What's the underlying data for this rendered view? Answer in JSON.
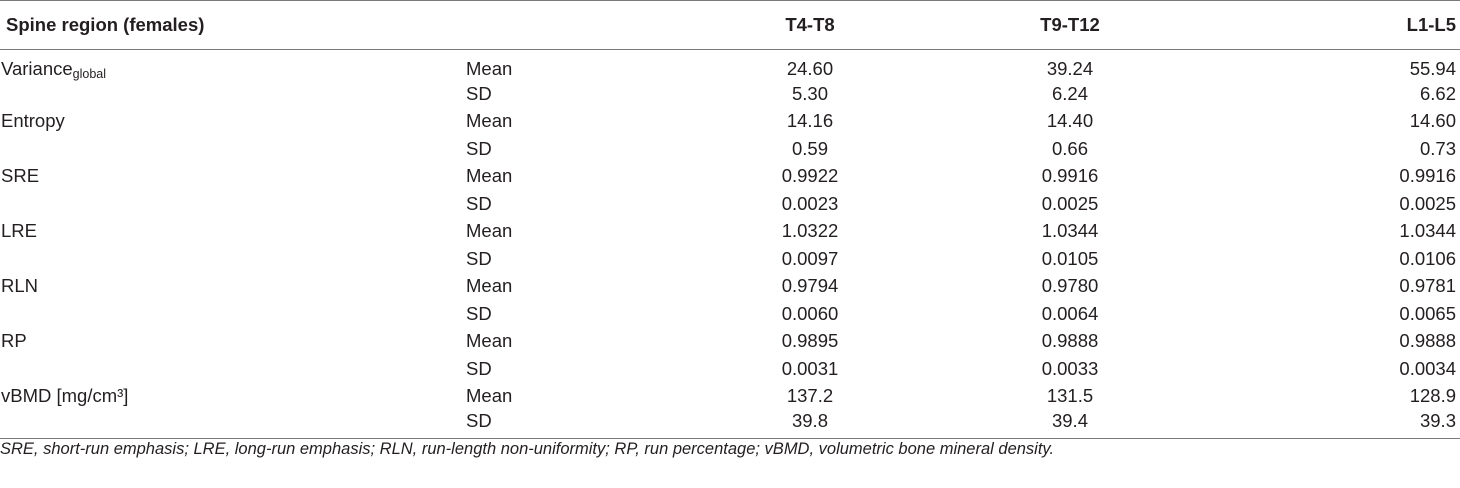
{
  "header": {
    "region": "Spine region (females)",
    "stat": "",
    "col1": "T4-T8",
    "col2": "T9-T12",
    "col3": "L1-L5"
  },
  "rows": [
    {
      "label": "Variance",
      "label_sub": "global",
      "stat": "Mean",
      "v1": "24.60",
      "v2": "39.24",
      "v3": "55.94"
    },
    {
      "label": "",
      "label_sub": "",
      "stat": "SD",
      "v1": "5.30",
      "v2": "6.24",
      "v3": "6.62"
    },
    {
      "label": "Entropy",
      "label_sub": "",
      "stat": "Mean",
      "v1": "14.16",
      "v2": "14.40",
      "v3": "14.60"
    },
    {
      "label": "",
      "label_sub": "",
      "stat": "SD",
      "v1": "0.59",
      "v2": "0.66",
      "v3": "0.73"
    },
    {
      "label": "SRE",
      "label_sub": "",
      "stat": "Mean",
      "v1": "0.9922",
      "v2": "0.9916",
      "v3": "0.9916"
    },
    {
      "label": "",
      "label_sub": "",
      "stat": "SD",
      "v1": "0.0023",
      "v2": "0.0025",
      "v3": "0.0025"
    },
    {
      "label": "LRE",
      "label_sub": "",
      "stat": "Mean",
      "v1": "1.0322",
      "v2": "1.0344",
      "v3": "1.0344"
    },
    {
      "label": "",
      "label_sub": "",
      "stat": "SD",
      "v1": "0.0097",
      "v2": "0.0105",
      "v3": "0.0106"
    },
    {
      "label": "RLN",
      "label_sub": "",
      "stat": "Mean",
      "v1": "0.9794",
      "v2": "0.9780",
      "v3": "0.9781"
    },
    {
      "label": "",
      "label_sub": "",
      "stat": "SD",
      "v1": "0.0060",
      "v2": "0.0064",
      "v3": "0.0065"
    },
    {
      "label": "RP",
      "label_sub": "",
      "stat": "Mean",
      "v1": "0.9895",
      "v2": "0.9888",
      "v3": "0.9888"
    },
    {
      "label": "",
      "label_sub": "",
      "stat": "SD",
      "v1": "0.0031",
      "v2": "0.0033",
      "v3": "0.0034"
    },
    {
      "label": "vBMD [mg/cm³]",
      "label_sub": "",
      "stat": "Mean",
      "v1": "137.2",
      "v2": "131.5",
      "v3": "128.9"
    },
    {
      "label": "",
      "label_sub": "",
      "stat": "SD",
      "v1": "39.8",
      "v2": "39.4",
      "v3": "39.3"
    }
  ],
  "footnote": "SRE, short-run emphasis; LRE, long-run emphasis; RLN, run-length non-uniformity; RP, run percentage; vBMD, volumetric bone mineral density."
}
